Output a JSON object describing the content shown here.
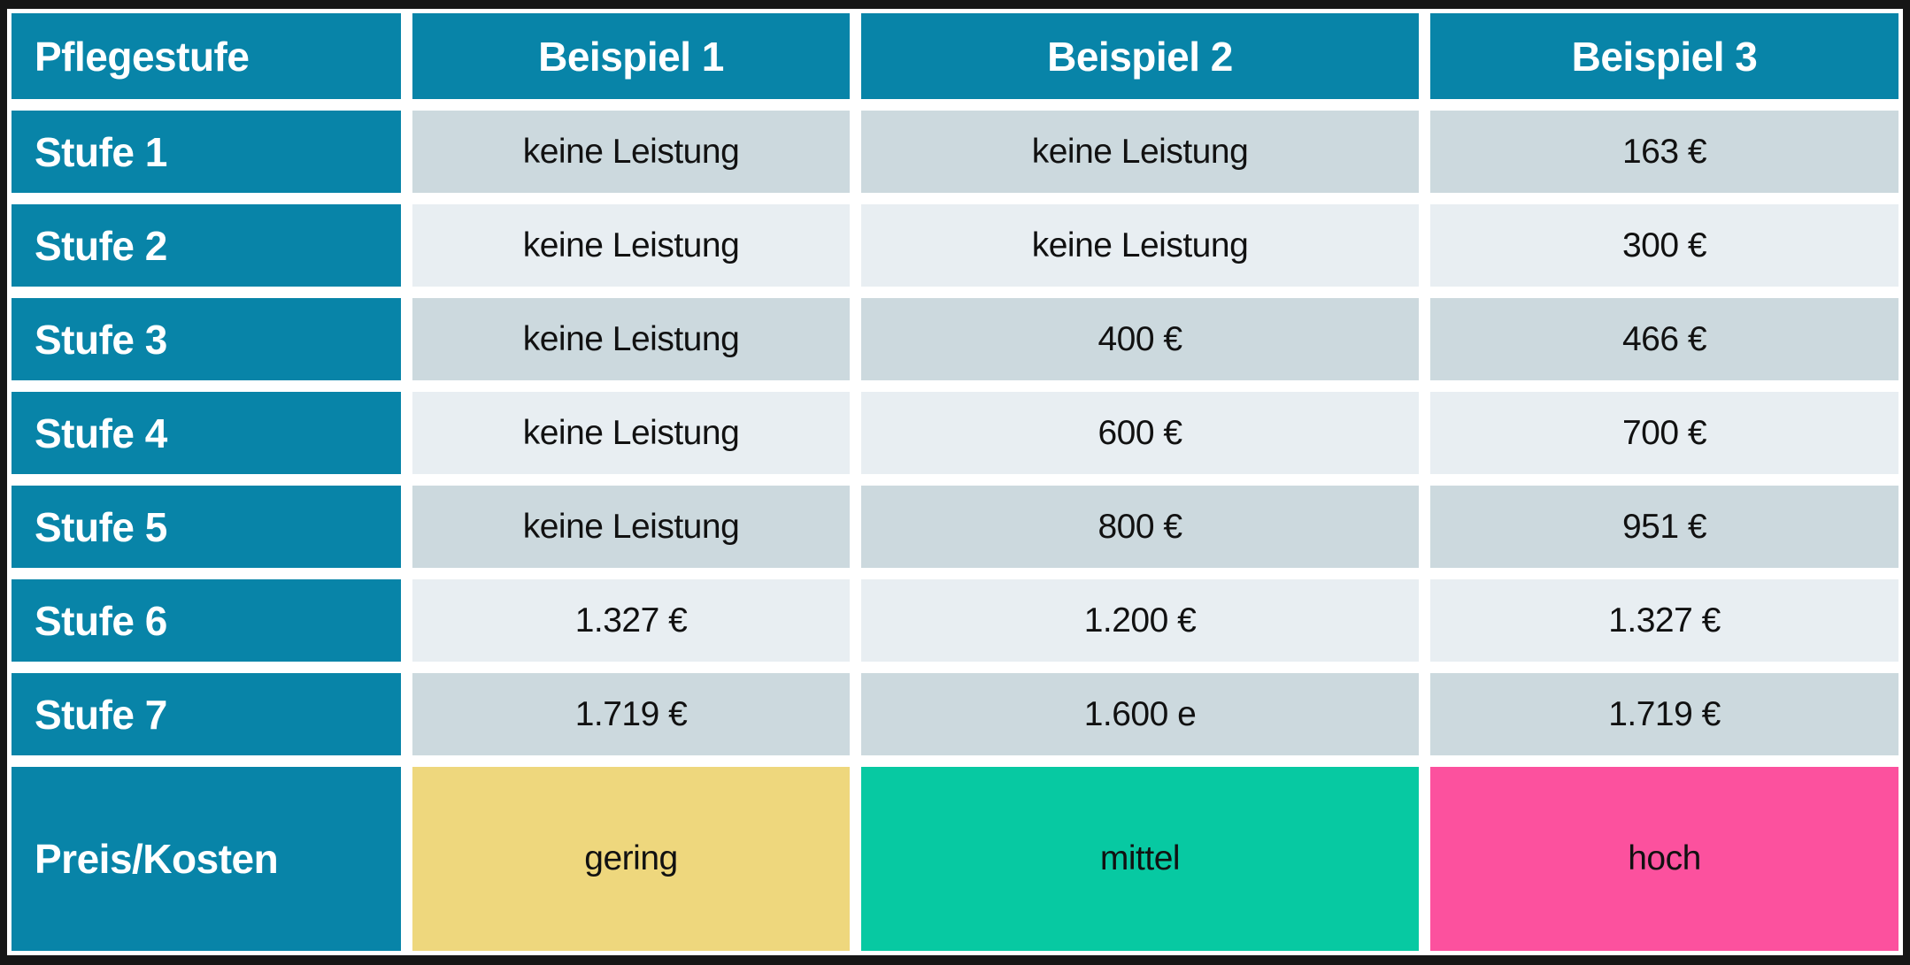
{
  "table": {
    "corner_header": "Pflegestufe",
    "column_headers": [
      "Beispiel 1",
      "Beispiel 2",
      "Beispiel 3"
    ],
    "rows": [
      {
        "label": "Stufe 1",
        "values": [
          "keine Leistung",
          "keine Leistung",
          "163 €"
        ]
      },
      {
        "label": "Stufe 2",
        "values": [
          "keine Leistung",
          "keine Leistung",
          "300 €"
        ]
      },
      {
        "label": "Stufe 3",
        "values": [
          "keine Leistung",
          "400 €",
          "466 €"
        ]
      },
      {
        "label": "Stufe 4",
        "values": [
          "keine Leistung",
          "600 €",
          "700 €"
        ]
      },
      {
        "label": "Stufe 5",
        "values": [
          "keine Leistung",
          "800 €",
          "951 €"
        ]
      },
      {
        "label": "Stufe 6",
        "values": [
          "1.327 €",
          "1.200 €",
          "1.327 €"
        ]
      },
      {
        "label": "Stufe 7",
        "values": [
          "1.719 €",
          "1.600 e",
          "1.719 €"
        ]
      }
    ],
    "footer": {
      "label": "Preis/Kosten",
      "cells": [
        {
          "text": "gering",
          "bg": "#eed77d"
        },
        {
          "text": "mittel",
          "bg": "#07c9a2"
        },
        {
          "text": "hoch",
          "bg": "#fc519e"
        }
      ]
    },
    "colors": {
      "header_bg": "#0884a8",
      "row_odd_bg": "#ccd9de",
      "row_even_bg": "#e8eef2",
      "frame": "#161616",
      "header_text": "#ffffff",
      "data_text": "#111111"
    }
  },
  "chart_data": {
    "type": "table",
    "title": "Pflegestufe",
    "categories": [
      "Stufe 1",
      "Stufe 2",
      "Stufe 3",
      "Stufe 4",
      "Stufe 5",
      "Stufe 6",
      "Stufe 7",
      "Preis/Kosten"
    ],
    "series": [
      {
        "name": "Beispiel 1",
        "values": [
          "keine Leistung",
          "keine Leistung",
          "keine Leistung",
          "keine Leistung",
          "keine Leistung",
          "1.327 €",
          "1.719 €",
          "gering"
        ]
      },
      {
        "name": "Beispiel 2",
        "values": [
          "keine Leistung",
          "keine Leistung",
          "400 €",
          "600 €",
          "800 €",
          "1.200 €",
          "1.600 e",
          "mittel"
        ]
      },
      {
        "name": "Beispiel 3",
        "values": [
          "163 €",
          "300 €",
          "466 €",
          "700 €",
          "951 €",
          "1.327 €",
          "1.719 €",
          "hoch"
        ]
      }
    ],
    "annotations": {
      "price_row_colors": {
        "gering": "#eed77d",
        "mittel": "#07c9a2",
        "hoch": "#fc519e"
      }
    }
  }
}
